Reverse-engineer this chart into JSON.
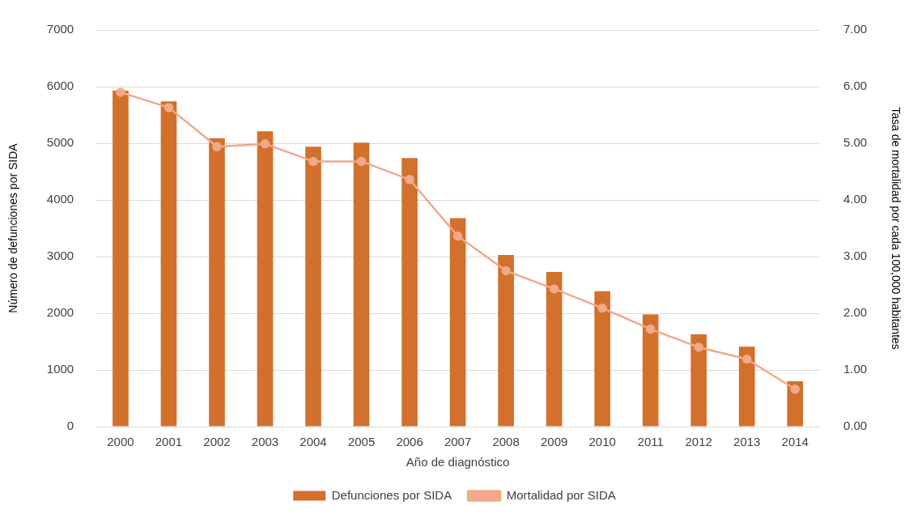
{
  "chart_data": {
    "type": "bar",
    "xlabel": "Año de diagnóstico",
    "ylabel": "Número de defunciones por SIDA",
    "y2label": "Tasa de mortalidad por cada 100,000 habitantes",
    "categories": [
      "2000",
      "2001",
      "2002",
      "2003",
      "2004",
      "2005",
      "2006",
      "2007",
      "2008",
      "2009",
      "2010",
      "2011",
      "2012",
      "2013",
      "2014"
    ],
    "series": [
      {
        "name": "Defunciones por SIDA",
        "color": "#d2702c",
        "values": [
          5930,
          5740,
          5090,
          5210,
          4940,
          5010,
          4740,
          3680,
          3030,
          2730,
          2390,
          1980,
          1630,
          1410,
          800
        ]
      },
      {
        "name": "Mortalidad por SIDA",
        "type": "line",
        "axis": "y2",
        "color": "#f1a98a",
        "marker": "circle",
        "values": [
          5.9,
          5.63,
          4.94,
          4.99,
          4.68,
          4.68,
          4.36,
          3.36,
          2.75,
          2.43,
          2.09,
          1.72,
          1.4,
          1.19,
          0.66
        ]
      }
    ],
    "ylim": [
      0,
      7000
    ],
    "yticks": [
      0,
      1000,
      2000,
      3000,
      4000,
      5000,
      6000,
      7000
    ],
    "y2lim": [
      0,
      7
    ],
    "y2ticks": [
      {
        "value": 0,
        "label": "0.00"
      },
      {
        "value": 1,
        "label": "1.00"
      },
      {
        "value": 2,
        "label": "2.00"
      },
      {
        "value": 3,
        "label": "3.00"
      },
      {
        "value": 4,
        "label": "4.00"
      },
      {
        "value": 5,
        "label": "5.00"
      },
      {
        "value": 6,
        "label": "6.00"
      },
      {
        "value": 7,
        "label": "7.00"
      }
    ],
    "grid": "y",
    "legend": "bottom"
  }
}
